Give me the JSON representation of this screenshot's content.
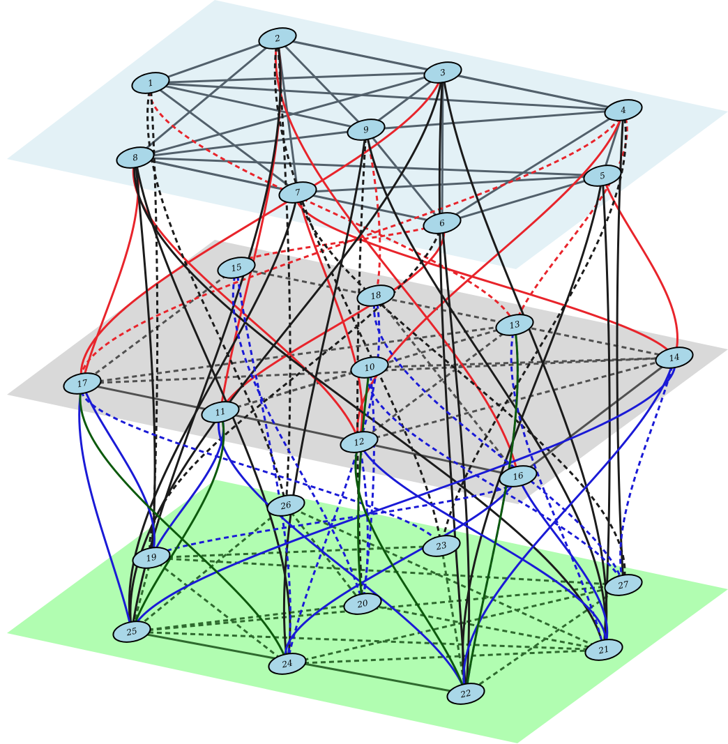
{
  "colors": {
    "layer_top": "#e3f1f6",
    "layer_middle": "#d9d9d9",
    "layer_bottom": "#b1fdb1",
    "node_fill": "#a9d7e8",
    "node_stroke": "#000000",
    "intra_top": "#52606b",
    "intra_middle": "#505050",
    "intra_bottom": "#2e6a2e",
    "inter_red": "#e8242b",
    "inter_black": "#1b1b1b",
    "inter_blue": "#1a1ad6",
    "inter_darkgreen": "#0d5a0d"
  },
  "layers": [
    {
      "id": "top",
      "label": ""
    },
    {
      "id": "middle",
      "label": ""
    },
    {
      "id": "bottom",
      "label": ""
    }
  ],
  "nodes": [
    {
      "id": "1",
      "label": "1"
    },
    {
      "id": "2",
      "label": "2"
    },
    {
      "id": "3",
      "label": "3"
    },
    {
      "id": "4",
      "label": "4"
    },
    {
      "id": "5",
      "label": "5"
    },
    {
      "id": "6",
      "label": "6"
    },
    {
      "id": "7",
      "label": "7"
    },
    {
      "id": "8",
      "label": "8"
    },
    {
      "id": "9",
      "label": "9"
    },
    {
      "id": "10",
      "label": "10"
    },
    {
      "id": "11",
      "label": "11"
    },
    {
      "id": "12",
      "label": "12"
    },
    {
      "id": "13",
      "label": "13"
    },
    {
      "id": "14",
      "label": "14"
    },
    {
      "id": "15",
      "label": "15"
    },
    {
      "id": "16",
      "label": "16"
    },
    {
      "id": "17",
      "label": "17"
    },
    {
      "id": "18",
      "label": "18"
    },
    {
      "id": "19",
      "label": "19"
    },
    {
      "id": "20",
      "label": "20"
    },
    {
      "id": "21",
      "label": "21"
    },
    {
      "id": "22",
      "label": "22"
    },
    {
      "id": "23",
      "label": "23"
    },
    {
      "id": "24",
      "label": "24"
    },
    {
      "id": "25",
      "label": "25"
    },
    {
      "id": "26",
      "label": "26"
    },
    {
      "id": "27",
      "label": "27"
    }
  ],
  "edges": [
    {
      "from": "1",
      "to": "2",
      "color": "intra_top",
      "style": "solid"
    },
    {
      "from": "1",
      "to": "3",
      "color": "intra_top",
      "style": "solid"
    },
    {
      "from": "1",
      "to": "4",
      "color": "intra_top",
      "style": "solid"
    },
    {
      "from": "1",
      "to": "9",
      "color": "intra_top",
      "style": "solid"
    },
    {
      "from": "1",
      "to": "7",
      "color": "intra_top",
      "style": "solid"
    },
    {
      "from": "2",
      "to": "3",
      "color": "intra_top",
      "style": "solid"
    },
    {
      "from": "2",
      "to": "4",
      "color": "intra_top",
      "style": "solid"
    },
    {
      "from": "2",
      "to": "9",
      "color": "intra_top",
      "style": "solid"
    },
    {
      "from": "2",
      "to": "7",
      "color": "intra_top",
      "style": "solid"
    },
    {
      "from": "2",
      "to": "8",
      "color": "intra_top",
      "style": "solid"
    },
    {
      "from": "3",
      "to": "4",
      "color": "intra_top",
      "style": "solid"
    },
    {
      "from": "3",
      "to": "9",
      "color": "intra_top",
      "style": "solid"
    },
    {
      "from": "3",
      "to": "6",
      "color": "intra_top",
      "style": "solid"
    },
    {
      "from": "3",
      "to": "8",
      "color": "intra_top",
      "style": "solid"
    },
    {
      "from": "4",
      "to": "9",
      "color": "intra_top",
      "style": "solid"
    },
    {
      "from": "4",
      "to": "5",
      "color": "intra_top",
      "style": "solid"
    },
    {
      "from": "4",
      "to": "6",
      "color": "intra_top",
      "style": "solid"
    },
    {
      "from": "5",
      "to": "8",
      "color": "intra_top",
      "style": "solid"
    },
    {
      "from": "5",
      "to": "6",
      "color": "intra_top",
      "style": "solid"
    },
    {
      "from": "5",
      "to": "7",
      "color": "intra_top",
      "style": "solid"
    },
    {
      "from": "8",
      "to": "9",
      "color": "intra_top",
      "style": "solid"
    },
    {
      "from": "8",
      "to": "7",
      "color": "intra_top",
      "style": "solid"
    },
    {
      "from": "8",
      "to": "6",
      "color": "intra_top",
      "style": "solid"
    },
    {
      "from": "9",
      "to": "6",
      "color": "intra_top",
      "style": "solid"
    },
    {
      "from": "17",
      "to": "11",
      "color": "intra_middle",
      "style": "solid"
    },
    {
      "from": "11",
      "to": "16",
      "color": "intra_middle",
      "style": "solid"
    },
    {
      "from": "17",
      "to": "14",
      "color": "intra_middle",
      "style": "dashed"
    },
    {
      "from": "17",
      "to": "13",
      "color": "intra_middle",
      "style": "dashed"
    },
    {
      "from": "15",
      "to": "14",
      "color": "intra_middle",
      "style": "dashed"
    },
    {
      "from": "10",
      "to": "14",
      "color": "intra_middle",
      "style": "dashed"
    },
    {
      "from": "11",
      "to": "13",
      "color": "intra_middle",
      "style": "dashed"
    },
    {
      "from": "12",
      "to": "14",
      "color": "intra_middle",
      "style": "dashed"
    },
    {
      "from": "18",
      "to": "16",
      "color": "intra_middle",
      "style": "dashed"
    },
    {
      "from": "16",
      "to": "14",
      "color": "intra_middle",
      "style": "solid"
    },
    {
      "from": "17",
      "to": "15",
      "color": "intra_middle",
      "style": "dashed"
    },
    {
      "from": "11",
      "to": "10",
      "color": "intra_middle",
      "style": "dashed"
    },
    {
      "from": "12",
      "to": "13",
      "color": "intra_middle",
      "style": "dashed"
    },
    {
      "from": "25",
      "to": "22",
      "color": "intra_bottom",
      "style": "solid"
    },
    {
      "from": "25",
      "to": "21",
      "color": "intra_bottom",
      "style": "dashed"
    },
    {
      "from": "25",
      "to": "27",
      "color": "intra_bottom",
      "style": "dashed"
    },
    {
      "from": "25",
      "to": "20",
      "color": "intra_bottom",
      "style": "dashed"
    },
    {
      "from": "25",
      "to": "26",
      "color": "intra_bottom",
      "style": "dashed"
    },
    {
      "from": "19",
      "to": "27",
      "color": "intra_bottom",
      "style": "dashed"
    },
    {
      "from": "19",
      "to": "23",
      "color": "intra_bottom",
      "style": "dashed"
    },
    {
      "from": "19",
      "to": "24",
      "color": "intra_bottom",
      "style": "dashed"
    },
    {
      "from": "24",
      "to": "21",
      "color": "intra_bottom",
      "style": "dashed"
    },
    {
      "from": "24",
      "to": "27",
      "color": "intra_bottom",
      "style": "dashed"
    },
    {
      "from": "26",
      "to": "21",
      "color": "intra_bottom",
      "style": "dashed"
    },
    {
      "from": "26",
      "to": "20",
      "color": "intra_bottom",
      "style": "dashed"
    },
    {
      "from": "23",
      "to": "22",
      "color": "intra_bottom",
      "style": "dashed"
    },
    {
      "from": "20",
      "to": "21",
      "color": "intra_bottom",
      "style": "dashed"
    },
    {
      "from": "22",
      "to": "27",
      "color": "intra_bottom",
      "style": "dashed"
    },
    {
      "from": "19",
      "to": "25",
      "color": "intra_bottom",
      "style": "dashed"
    },
    {
      "from": "3",
      "to": "17",
      "color": "inter_red",
      "style": "solid"
    },
    {
      "from": "8",
      "to": "17",
      "color": "inter_red",
      "style": "solid"
    },
    {
      "from": "8",
      "to": "12",
      "color": "inter_red",
      "style": "solid"
    },
    {
      "from": "2",
      "to": "11",
      "color": "inter_red",
      "style": "solid"
    },
    {
      "from": "2",
      "to": "16",
      "color": "inter_red",
      "style": "solid"
    },
    {
      "from": "7",
      "to": "12",
      "color": "inter_red",
      "style": "solid"
    },
    {
      "from": "7",
      "to": "14",
      "color": "inter_red",
      "style": "solid"
    },
    {
      "from": "6",
      "to": "11",
      "color": "inter_red",
      "style": "solid"
    },
    {
      "from": "4",
      "to": "12",
      "color": "inter_red",
      "style": "solid"
    },
    {
      "from": "5",
      "to": "14",
      "color": "inter_red",
      "style": "solid"
    },
    {
      "from": "1",
      "to": "13",
      "color": "inter_red",
      "style": "dashed"
    },
    {
      "from": "9",
      "to": "18",
      "color": "inter_red",
      "style": "dashed"
    },
    {
      "from": "4",
      "to": "17",
      "color": "inter_red",
      "style": "dashed"
    },
    {
      "from": "4",
      "to": "13",
      "color": "inter_red",
      "style": "dashed"
    },
    {
      "from": "6",
      "to": "15",
      "color": "inter_red",
      "style": "dashed"
    },
    {
      "from": "1",
      "to": "19",
      "color": "inter_black",
      "style": "dashed"
    },
    {
      "from": "1",
      "to": "26",
      "color": "inter_black",
      "style": "dashed"
    },
    {
      "from": "2",
      "to": "26",
      "color": "inter_black",
      "style": "dashed"
    },
    {
      "from": "2",
      "to": "23",
      "color": "inter_black",
      "style": "dashed"
    },
    {
      "from": "2",
      "to": "25",
      "color": "inter_black",
      "style": "solid"
    },
    {
      "from": "3",
      "to": "25",
      "color": "inter_black",
      "style": "solid"
    },
    {
      "from": "3",
      "to": "21",
      "color": "inter_black",
      "style": "solid"
    },
    {
      "from": "3",
      "to": "22",
      "color": "inter_black",
      "style": "solid"
    },
    {
      "from": "8",
      "to": "24",
      "color": "inter_black",
      "style": "solid"
    },
    {
      "from": "8",
      "to": "21",
      "color": "inter_black",
      "style": "solid"
    },
    {
      "from": "8",
      "to": "19",
      "color": "inter_black",
      "style": "solid"
    },
    {
      "from": "9",
      "to": "24",
      "color": "inter_black",
      "style": "solid"
    },
    {
      "from": "9",
      "to": "21",
      "color": "inter_black",
      "style": "solid"
    },
    {
      "from": "7",
      "to": "25",
      "color": "inter_black",
      "style": "solid"
    },
    {
      "from": "6",
      "to": "22",
      "color": "inter_black",
      "style": "solid"
    },
    {
      "from": "5",
      "to": "22",
      "color": "inter_black",
      "style": "solid"
    },
    {
      "from": "5",
      "to": "21",
      "color": "inter_black",
      "style": "solid"
    },
    {
      "from": "4",
      "to": "27",
      "color": "inter_black",
      "style": "solid"
    },
    {
      "from": "4",
      "to": "23",
      "color": "inter_black",
      "style": "dashed"
    },
    {
      "from": "9",
      "to": "20",
      "color": "inter_black",
      "style": "dashed"
    },
    {
      "from": "7",
      "to": "27",
      "color": "inter_black",
      "style": "dashed"
    },
    {
      "from": "6",
      "to": "19",
      "color": "inter_black",
      "style": "dashed"
    },
    {
      "from": "17",
      "to": "19",
      "color": "inter_blue",
      "style": "solid"
    },
    {
      "from": "17",
      "to": "25",
      "color": "inter_blue",
      "style": "solid"
    },
    {
      "from": "11",
      "to": "19",
      "color": "inter_blue",
      "style": "solid"
    },
    {
      "from": "11",
      "to": "22",
      "color": "inter_blue",
      "style": "solid"
    },
    {
      "from": "14",
      "to": "25",
      "color": "inter_blue",
      "style": "solid"
    },
    {
      "from": "14",
      "to": "22",
      "color": "inter_blue",
      "style": "solid"
    },
    {
      "from": "16",
      "to": "21",
      "color": "inter_blue",
      "style": "solid"
    },
    {
      "from": "16",
      "to": "24",
      "color": "inter_blue",
      "style": "solid"
    },
    {
      "from": "12",
      "to": "21",
      "color": "inter_blue",
      "style": "solid"
    },
    {
      "from": "17",
      "to": "23",
      "color": "inter_blue",
      "style": "dashed"
    },
    {
      "from": "15",
      "to": "24",
      "color": "inter_blue",
      "style": "dashed"
    },
    {
      "from": "15",
      "to": "20",
      "color": "inter_blue",
      "style": "dashed"
    },
    {
      "from": "18",
      "to": "24",
      "color": "inter_blue",
      "style": "dashed"
    },
    {
      "from": "18",
      "to": "27",
      "color": "inter_blue",
      "style": "dashed"
    },
    {
      "from": "10",
      "to": "20",
      "color": "inter_blue",
      "style": "dashed"
    },
    {
      "from": "10",
      "to": "27",
      "color": "inter_blue",
      "style": "dashed"
    },
    {
      "from": "13",
      "to": "22",
      "color": "inter_blue",
      "style": "dashed"
    },
    {
      "from": "13",
      "to": "21",
      "color": "inter_blue",
      "style": "dashed"
    },
    {
      "from": "16",
      "to": "19",
      "color": "inter_blue",
      "style": "dashed"
    },
    {
      "from": "14",
      "to": "27",
      "color": "inter_blue",
      "style": "dashed"
    },
    {
      "from": "12",
      "to": "20",
      "color": "inter_blue",
      "style": "dashed"
    },
    {
      "from": "12",
      "to": "22",
      "color": "inter_darkgreen",
      "style": "solid"
    },
    {
      "from": "13",
      "to": "22",
      "color": "inter_darkgreen",
      "style": "solid"
    },
    {
      "from": "10",
      "to": "20",
      "color": "inter_darkgreen",
      "style": "solid"
    },
    {
      "from": "11",
      "to": "25",
      "color": "inter_darkgreen",
      "style": "solid"
    },
    {
      "from": "17",
      "to": "24",
      "color": "inter_darkgreen",
      "style": "solid"
    }
  ]
}
